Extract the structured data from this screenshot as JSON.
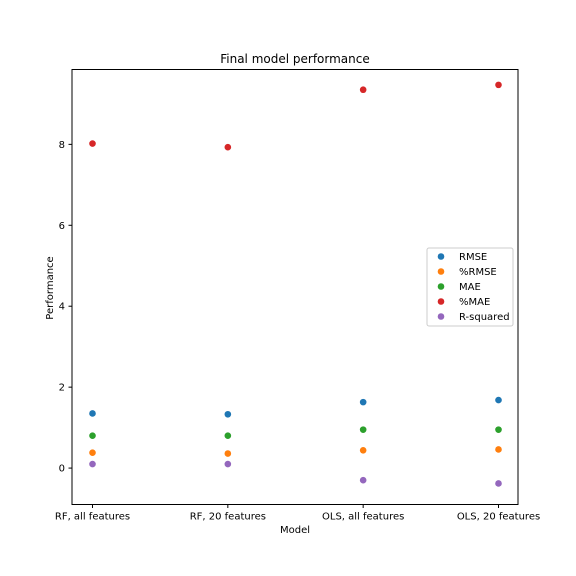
{
  "chart_data": {
    "type": "scatter",
    "title": "Final model performance",
    "xlabel": "Model",
    "ylabel": "Performance",
    "categories": [
      "RF, all features",
      "RF, 20 features",
      "OLS, all features",
      "OLS, 20 features"
    ],
    "yticks": [
      0,
      2,
      4,
      6,
      8
    ],
    "ylim": [
      -0.9,
      9.85
    ],
    "grid": false,
    "legend_position": "center-right",
    "series": [
      {
        "name": "RMSE",
        "color": "#1f77b4",
        "values": [
          1.35,
          1.33,
          1.63,
          1.68
        ]
      },
      {
        "name": "%RMSE",
        "color": "#ff7f0e",
        "values": [
          0.38,
          0.36,
          0.44,
          0.46
        ]
      },
      {
        "name": "MAE",
        "color": "#2ca02c",
        "values": [
          0.8,
          0.8,
          0.95,
          0.95
        ]
      },
      {
        "name": "%MAE",
        "color": "#d62728",
        "values": [
          8.02,
          7.93,
          9.35,
          9.47
        ]
      },
      {
        "name": "R-squared",
        "color": "#9467bd",
        "values": [
          0.1,
          0.1,
          -0.3,
          -0.38
        ]
      }
    ]
  }
}
